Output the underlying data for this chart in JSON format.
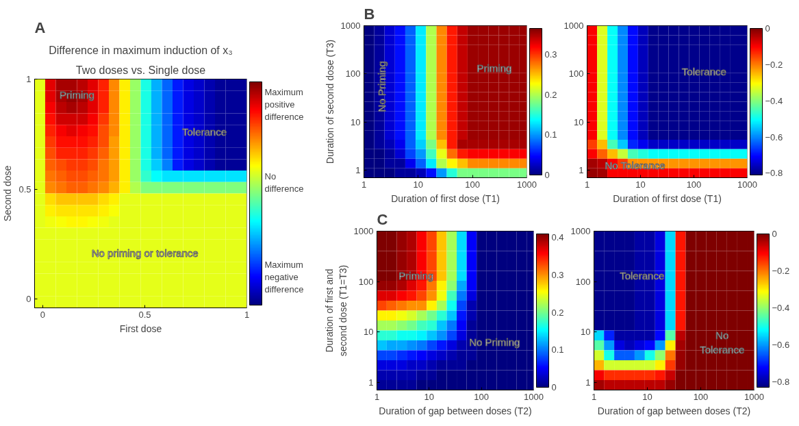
{
  "chart_data": [
    {
      "type": "heatmap",
      "title": "Difference in maximum induction of x₃",
      "subtitle": "Two doses vs. Single dose",
      "xlabel": "First dose",
      "ylabel": "Second dose",
      "annotations": [
        "A",
        "Priming",
        "Tolerance",
        "No priming or tolerance"
      ],
      "xlim": [
        -0.04,
        1
      ],
      "ylim": [
        -0.04,
        1
      ],
      "xticks": [
        0,
        0.5,
        1
      ],
      "yticks": [
        0,
        0.5,
        1
      ],
      "x": [
        -0.014,
        0.038,
        0.09,
        0.142,
        0.194,
        0.246,
        0.298,
        0.35,
        0.402,
        0.454,
        0.506,
        0.558,
        0.61,
        0.662,
        0.714,
        0.766,
        0.818,
        0.87,
        0.922,
        0.974
      ],
      "y": [
        0.974,
        0.922,
        0.87,
        0.818,
        0.766,
        0.714,
        0.662,
        0.61,
        0.558,
        0.506,
        0.454,
        0.402,
        0.35,
        0.298,
        0.246,
        0.194,
        0.142,
        0.09,
        0.038,
        -0.014
      ],
      "clim": [
        -1,
        1
      ],
      "cticks": [
        {
          "value": 0.8,
          "label": "Maximum\npositive\ndifference"
        },
        {
          "value": 0.1,
          "label": "No\ndifference"
        },
        {
          "value": -0.75,
          "label": "Maximum\nnegative\ndifference"
        }
      ],
      "cells": [
        [
          0.2,
          0.8,
          0.92,
          0.92,
          0.88,
          0.8,
          0.68,
          0.48,
          0.28,
          0.05,
          -0.2,
          -0.4,
          -0.55,
          -0.7,
          -0.8,
          -0.85,
          -0.9,
          -0.95,
          -0.95,
          -0.95
        ],
        [
          0.2,
          0.8,
          0.92,
          0.96,
          0.92,
          0.8,
          0.68,
          0.48,
          0.28,
          0.05,
          -0.2,
          -0.4,
          -0.55,
          -0.7,
          -0.8,
          -0.85,
          -0.9,
          -0.95,
          -0.95,
          -0.95
        ],
        [
          0.2,
          0.76,
          0.88,
          0.92,
          0.88,
          0.8,
          0.68,
          0.48,
          0.28,
          0.05,
          -0.2,
          -0.4,
          -0.55,
          -0.7,
          -0.8,
          -0.85,
          -0.9,
          -0.95,
          -0.95,
          -0.95
        ],
        [
          0.2,
          0.72,
          0.84,
          0.84,
          0.84,
          0.76,
          0.64,
          0.48,
          0.28,
          0.05,
          -0.2,
          -0.4,
          -0.55,
          -0.7,
          -0.8,
          -0.85,
          -0.9,
          -0.95,
          -0.95,
          -0.95
        ],
        [
          0.2,
          0.68,
          0.76,
          0.8,
          0.76,
          0.72,
          0.6,
          0.48,
          0.28,
          0.05,
          -0.2,
          -0.4,
          -0.55,
          -0.7,
          -0.8,
          -0.85,
          -0.9,
          -0.95,
          -0.95,
          -0.95
        ],
        [
          0.2,
          0.64,
          0.72,
          0.72,
          0.72,
          0.68,
          0.6,
          0.44,
          0.28,
          0.05,
          -0.2,
          -0.4,
          -0.55,
          -0.7,
          -0.8,
          -0.85,
          -0.9,
          -0.95,
          -0.95,
          -0.95
        ],
        [
          0.2,
          0.6,
          0.68,
          0.68,
          0.68,
          0.64,
          0.56,
          0.44,
          0.28,
          0.05,
          -0.2,
          -0.4,
          -0.55,
          -0.7,
          -0.8,
          -0.85,
          -0.9,
          -0.95,
          -0.95,
          -0.95
        ],
        [
          0.2,
          0.56,
          0.6,
          0.64,
          0.64,
          0.6,
          0.52,
          0.44,
          0.28,
          0.05,
          -0.2,
          -0.35,
          -0.5,
          -0.7,
          -0.8,
          -0.85,
          -0.9,
          -0.95,
          -0.95,
          -0.95
        ],
        [
          0.2,
          0.52,
          0.56,
          0.6,
          0.6,
          0.56,
          0.52,
          0.44,
          0.28,
          0.05,
          -0.15,
          -0.25,
          -0.3,
          -0.3,
          -0.3,
          -0.3,
          -0.3,
          -0.3,
          -0.3,
          -0.3
        ],
        [
          0.2,
          0.48,
          0.52,
          0.56,
          0.56,
          0.52,
          0.48,
          0.4,
          0.28,
          0.1,
          0,
          0,
          0,
          0,
          0,
          0,
          0,
          0,
          0,
          0
        ],
        [
          0.2,
          0.32,
          0.36,
          0.36,
          0.36,
          0.36,
          0.32,
          0.28,
          0.2,
          0.2,
          0.2,
          0.2,
          0.2,
          0.2,
          0.2,
          0.2,
          0.2,
          0.2,
          0.2,
          0.2
        ],
        [
          0.2,
          0.28,
          0.3,
          0.3,
          0.3,
          0.3,
          0.28,
          0.24,
          0.2,
          0.2,
          0.2,
          0.2,
          0.2,
          0.2,
          0.2,
          0.2,
          0.2,
          0.2,
          0.2,
          0.2
        ],
        [
          0.2,
          0.22,
          0.24,
          0.26,
          0.26,
          0.24,
          0.22,
          0.2,
          0.2,
          0.2,
          0.2,
          0.2,
          0.2,
          0.2,
          0.2,
          0.2,
          0.2,
          0.2,
          0.2,
          0.2
        ],
        [
          0.2,
          0.2,
          0.2,
          0.2,
          0.2,
          0.2,
          0.2,
          0.2,
          0.2,
          0.2,
          0.2,
          0.2,
          0.2,
          0.2,
          0.2,
          0.2,
          0.2,
          0.2,
          0.2,
          0.2
        ],
        [
          0.2,
          0.2,
          0.2,
          0.2,
          0.2,
          0.2,
          0.2,
          0.2,
          0.2,
          0.2,
          0.2,
          0.2,
          0.2,
          0.2,
          0.2,
          0.2,
          0.2,
          0.2,
          0.2,
          0.2
        ],
        [
          0.2,
          0.2,
          0.2,
          0.2,
          0.2,
          0.2,
          0.2,
          0.2,
          0.2,
          0.2,
          0.2,
          0.2,
          0.2,
          0.2,
          0.2,
          0.2,
          0.2,
          0.2,
          0.2,
          0.2
        ],
        [
          0.2,
          0.2,
          0.2,
          0.2,
          0.2,
          0.2,
          0.2,
          0.2,
          0.2,
          0.2,
          0.2,
          0.2,
          0.2,
          0.2,
          0.2,
          0.2,
          0.2,
          0.2,
          0.2,
          0.2
        ],
        [
          0.2,
          0.2,
          0.2,
          0.2,
          0.2,
          0.2,
          0.2,
          0.2,
          0.2,
          0.2,
          0.2,
          0.2,
          0.2,
          0.2,
          0.2,
          0.2,
          0.2,
          0.2,
          0.2,
          0.2
        ],
        [
          0.2,
          0.2,
          0.2,
          0.2,
          0.2,
          0.2,
          0.2,
          0.2,
          0.2,
          0.2,
          0.2,
          0.2,
          0.2,
          0.2,
          0.2,
          0.2,
          0.2,
          0.2,
          0.2,
          0.2
        ],
        [
          0.2,
          0.2,
          0.2,
          0.2,
          0.2,
          0.2,
          0.2,
          0.2,
          0.2,
          0.2,
          0.2,
          0.2,
          0.2,
          0.2,
          0.2,
          0.2,
          0.2,
          0.2,
          0.2,
          0.2
        ]
      ]
    },
    {
      "type": "heatmap",
      "xlabel": "Duration of first dose (T1)",
      "ylabel": "Duration of second dose (T3)",
      "annotations": [
        "B",
        "No Priming",
        "Priming"
      ],
      "log": "xy",
      "xlim": [
        1,
        1000
      ],
      "ylim": [
        0.7,
        1000
      ],
      "xticks": [
        1,
        10,
        100,
        1000
      ],
      "yticks": [
        1,
        10,
        100,
        1000
      ],
      "x": [
        1.24,
        1.92,
        2.99,
        4.64,
        7.2,
        11.2,
        17.4,
        27,
        41.9,
        65,
        101,
        157,
        244,
        379,
        589,
        914
      ],
      "y": [
        797,
        506,
        322,
        204,
        130,
        82.3,
        52.3,
        33.2,
        21.1,
        13.4,
        8.5,
        5.4,
        3.43,
        2.18,
        1.38,
        0.878
      ],
      "clim": [
        0,
        0.365
      ],
      "cticks": [
        0,
        0.1,
        0.2,
        0.3
      ],
      "cells": [
        [
          0,
          0.01,
          0.03,
          0.05,
          0.08,
          0.13,
          0.2,
          0.27,
          0.31,
          0.34,
          0.355,
          0.355,
          0.355,
          0.355,
          0.355,
          0.355
        ],
        [
          0,
          0.01,
          0.03,
          0.05,
          0.08,
          0.13,
          0.2,
          0.27,
          0.31,
          0.34,
          0.355,
          0.355,
          0.355,
          0.355,
          0.355,
          0.355
        ],
        [
          0,
          0.01,
          0.03,
          0.05,
          0.08,
          0.13,
          0.2,
          0.27,
          0.31,
          0.34,
          0.355,
          0.355,
          0.355,
          0.355,
          0.355,
          0.355
        ],
        [
          0,
          0.01,
          0.03,
          0.05,
          0.08,
          0.13,
          0.2,
          0.27,
          0.31,
          0.34,
          0.355,
          0.355,
          0.355,
          0.355,
          0.355,
          0.355
        ],
        [
          0,
          0.01,
          0.03,
          0.05,
          0.08,
          0.13,
          0.2,
          0.27,
          0.31,
          0.34,
          0.355,
          0.355,
          0.355,
          0.355,
          0.355,
          0.355
        ],
        [
          0,
          0.01,
          0.03,
          0.05,
          0.08,
          0.13,
          0.2,
          0.27,
          0.31,
          0.34,
          0.355,
          0.355,
          0.355,
          0.355,
          0.355,
          0.355
        ],
        [
          0,
          0.01,
          0.03,
          0.05,
          0.08,
          0.13,
          0.2,
          0.27,
          0.31,
          0.34,
          0.355,
          0.355,
          0.355,
          0.355,
          0.355,
          0.355
        ],
        [
          0,
          0.01,
          0.03,
          0.05,
          0.08,
          0.13,
          0.2,
          0.27,
          0.31,
          0.34,
          0.355,
          0.355,
          0.355,
          0.355,
          0.355,
          0.355
        ],
        [
          0,
          0.01,
          0.03,
          0.05,
          0.08,
          0.13,
          0.2,
          0.27,
          0.31,
          0.34,
          0.355,
          0.355,
          0.355,
          0.355,
          0.355,
          0.355
        ],
        [
          0,
          0.01,
          0.03,
          0.05,
          0.08,
          0.13,
          0.2,
          0.27,
          0.31,
          0.34,
          0.355,
          0.355,
          0.355,
          0.355,
          0.355,
          0.355
        ],
        [
          0,
          0.01,
          0.03,
          0.05,
          0.08,
          0.13,
          0.2,
          0.27,
          0.31,
          0.34,
          0.355,
          0.355,
          0.355,
          0.355,
          0.355,
          0.355
        ],
        [
          0,
          0.01,
          0.03,
          0.05,
          0.08,
          0.13,
          0.2,
          0.27,
          0.31,
          0.34,
          0.355,
          0.355,
          0.355,
          0.355,
          0.355,
          0.355
        ],
        [
          0,
          0.01,
          0.02,
          0.04,
          0.08,
          0.12,
          0.18,
          0.25,
          0.31,
          0.35,
          0.35,
          0.35,
          0.35,
          0.35,
          0.35,
          0.35
        ],
        [
          0,
          0,
          0.01,
          0.03,
          0.07,
          0.1,
          0.16,
          0.22,
          0.28,
          0.31,
          0.32,
          0.32,
          0.32,
          0.32,
          0.32,
          0.32
        ],
        [
          0,
          0,
          0.01,
          0.01,
          0.04,
          0.08,
          0.13,
          0.2,
          0.23,
          0.25,
          0.27,
          0.27,
          0.27,
          0.27,
          0.27,
          0.27
        ],
        [
          0,
          0,
          0,
          0.01,
          0.01,
          0.02,
          0.05,
          0.1,
          0.15,
          0.18,
          0.18,
          0.18,
          0.18,
          0.18,
          0.18,
          0.18
        ]
      ]
    },
    {
      "type": "heatmap",
      "xlabel": "Duration of first dose (T1)",
      "annotations": [
        "Tolerance",
        "No Tolerance"
      ],
      "log": "xy",
      "xlim": [
        1,
        1000
      ],
      "ylim": [
        0.7,
        1000
      ],
      "xticks": [
        1,
        10,
        100,
        1000
      ],
      "yticks": [
        1,
        10,
        100,
        1000
      ],
      "x": [
        1.24,
        1.92,
        2.99,
        4.64,
        7.2,
        11.2,
        17.4,
        27,
        41.9,
        65,
        101,
        157,
        244,
        379,
        589,
        914
      ],
      "y": [
        797,
        506,
        322,
        204,
        130,
        82.3,
        52.3,
        33.2,
        21.1,
        13.4,
        8.5,
        5.4,
        3.43,
        2.18,
        1.38,
        0.878
      ],
      "clim": [
        -0.81,
        0
      ],
      "cticks": [
        0,
        {
          "value": -0.2,
          "label": "−0.2"
        },
        {
          "value": -0.4,
          "label": "−0.4"
        },
        {
          "value": -0.6,
          "label": "−0.6"
        },
        {
          "value": -0.8,
          "label": "−0.8"
        }
      ],
      "cells": [
        [
          -0.1,
          -0.33,
          -0.5,
          -0.6,
          -0.7,
          -0.76,
          -0.8,
          -0.8,
          -0.8,
          -0.8,
          -0.8,
          -0.8,
          -0.8,
          -0.8,
          -0.8,
          -0.8
        ],
        [
          -0.1,
          -0.33,
          -0.5,
          -0.6,
          -0.7,
          -0.76,
          -0.8,
          -0.8,
          -0.8,
          -0.8,
          -0.8,
          -0.8,
          -0.8,
          -0.8,
          -0.8,
          -0.8
        ],
        [
          -0.1,
          -0.33,
          -0.5,
          -0.6,
          -0.7,
          -0.76,
          -0.8,
          -0.8,
          -0.8,
          -0.8,
          -0.8,
          -0.8,
          -0.8,
          -0.8,
          -0.8,
          -0.8
        ],
        [
          -0.1,
          -0.33,
          -0.5,
          -0.6,
          -0.7,
          -0.76,
          -0.8,
          -0.8,
          -0.8,
          -0.8,
          -0.8,
          -0.8,
          -0.8,
          -0.8,
          -0.8,
          -0.8
        ],
        [
          -0.1,
          -0.33,
          -0.5,
          -0.6,
          -0.7,
          -0.76,
          -0.8,
          -0.8,
          -0.8,
          -0.8,
          -0.8,
          -0.8,
          -0.8,
          -0.8,
          -0.8,
          -0.8
        ],
        [
          -0.1,
          -0.33,
          -0.5,
          -0.6,
          -0.7,
          -0.76,
          -0.8,
          -0.8,
          -0.8,
          -0.8,
          -0.8,
          -0.8,
          -0.8,
          -0.8,
          -0.8,
          -0.8
        ],
        [
          -0.1,
          -0.33,
          -0.5,
          -0.6,
          -0.7,
          -0.76,
          -0.8,
          -0.8,
          -0.8,
          -0.8,
          -0.8,
          -0.8,
          -0.8,
          -0.8,
          -0.8,
          -0.8
        ],
        [
          -0.1,
          -0.33,
          -0.5,
          -0.6,
          -0.7,
          -0.76,
          -0.8,
          -0.8,
          -0.8,
          -0.8,
          -0.8,
          -0.8,
          -0.8,
          -0.8,
          -0.8,
          -0.8
        ],
        [
          -0.1,
          -0.33,
          -0.5,
          -0.6,
          -0.7,
          -0.76,
          -0.8,
          -0.8,
          -0.8,
          -0.8,
          -0.8,
          -0.8,
          -0.8,
          -0.8,
          -0.8,
          -0.8
        ],
        [
          -0.1,
          -0.33,
          -0.5,
          -0.6,
          -0.7,
          -0.76,
          -0.8,
          -0.8,
          -0.8,
          -0.8,
          -0.8,
          -0.8,
          -0.8,
          -0.8,
          -0.8,
          -0.8
        ],
        [
          -0.1,
          -0.33,
          -0.5,
          -0.6,
          -0.7,
          -0.76,
          -0.8,
          -0.8,
          -0.8,
          -0.8,
          -0.8,
          -0.8,
          -0.8,
          -0.8,
          -0.8,
          -0.8
        ],
        [
          -0.1,
          -0.33,
          -0.5,
          -0.6,
          -0.7,
          -0.76,
          -0.8,
          -0.8,
          -0.8,
          -0.8,
          -0.8,
          -0.8,
          -0.8,
          -0.8,
          -0.8,
          -0.8
        ],
        [
          -0.15,
          -0.25,
          -0.45,
          -0.55,
          -0.68,
          -0.72,
          -0.75,
          -0.75,
          -0.75,
          -0.75,
          -0.75,
          -0.75,
          -0.75,
          -0.75,
          -0.75,
          -0.75
        ],
        [
          -0.1,
          -0.18,
          -0.25,
          -0.35,
          -0.45,
          -0.48,
          -0.5,
          -0.5,
          -0.5,
          -0.5,
          -0.5,
          -0.5,
          -0.5,
          -0.5,
          -0.5,
          -0.5
        ],
        [
          -0.03,
          -0.05,
          -0.1,
          -0.15,
          -0.22,
          -0.22,
          -0.22,
          -0.22,
          -0.22,
          -0.22,
          -0.22,
          -0.22,
          -0.22,
          -0.22,
          -0.22,
          -0.22
        ],
        [
          -0.02,
          -0.03,
          -0.1,
          -0.1,
          -0.1,
          -0.1,
          -0.1,
          -0.1,
          -0.1,
          -0.1,
          -0.1,
          -0.1,
          -0.1,
          -0.1,
          -0.1,
          -0.1
        ]
      ]
    },
    {
      "type": "heatmap",
      "xlabel": "Duration of gap between doses (T2)",
      "ylabel": "Duration of first and\nsecond dose (T1=T3)",
      "annotations": [
        "C",
        "Priming",
        "No Priming"
      ],
      "log": "xy",
      "xlim": [
        1,
        1000
      ],
      "ylim": [
        0.7,
        1000
      ],
      "xticks": [
        1,
        10,
        100,
        1000
      ],
      "yticks": [
        1,
        10,
        100,
        1000
      ],
      "x": [
        1.24,
        1.92,
        2.99,
        4.64,
        7.2,
        11.2,
        17.4,
        27,
        41.9,
        65,
        101,
        157,
        244,
        379,
        589,
        914
      ],
      "y": [
        797,
        506,
        322,
        204,
        130,
        82.3,
        52.3,
        33.2,
        21.1,
        13.4,
        8.5,
        5.4,
        3.43,
        2.18,
        1.38,
        0.878
      ],
      "clim": [
        0,
        0.41
      ],
      "cticks": [
        0,
        0.1,
        0.2,
        0.3,
        0.4
      ],
      "cells": [
        [
          0.41,
          0.41,
          0.4,
          0.39,
          0.36,
          0.33,
          0.28,
          0.22,
          0.14,
          0.05,
          0,
          0,
          0,
          0,
          0,
          0
        ],
        [
          0.41,
          0.41,
          0.4,
          0.39,
          0.36,
          0.33,
          0.28,
          0.22,
          0.14,
          0.05,
          0,
          0,
          0,
          0,
          0,
          0
        ],
        [
          0.41,
          0.41,
          0.4,
          0.39,
          0.36,
          0.33,
          0.28,
          0.22,
          0.14,
          0.05,
          0,
          0,
          0,
          0,
          0,
          0
        ],
        [
          0.41,
          0.41,
          0.4,
          0.39,
          0.36,
          0.33,
          0.28,
          0.22,
          0.14,
          0.05,
          0,
          0,
          0,
          0,
          0,
          0
        ],
        [
          0.41,
          0.41,
          0.4,
          0.39,
          0.36,
          0.33,
          0.28,
          0.22,
          0.14,
          0.05,
          0,
          0,
          0,
          0,
          0,
          0
        ],
        [
          0.4,
          0.4,
          0.39,
          0.37,
          0.35,
          0.31,
          0.26,
          0.21,
          0.12,
          0.05,
          0,
          0,
          0,
          0,
          0,
          0
        ],
        [
          0.37,
          0.37,
          0.36,
          0.35,
          0.33,
          0.3,
          0.25,
          0.18,
          0.1,
          0.04,
          0,
          0,
          0,
          0,
          0,
          0
        ],
        [
          0.33,
          0.32,
          0.31,
          0.3,
          0.3,
          0.26,
          0.22,
          0.16,
          0.08,
          0.02,
          0,
          0,
          0,
          0,
          0,
          0
        ],
        [
          0.26,
          0.26,
          0.25,
          0.24,
          0.22,
          0.2,
          0.17,
          0.13,
          0.06,
          0.02,
          0,
          0,
          0,
          0,
          0,
          0
        ],
        [
          0.22,
          0.22,
          0.21,
          0.2,
          0.18,
          0.17,
          0.13,
          0.1,
          0.05,
          0.01,
          0,
          0,
          0,
          0,
          0,
          0
        ],
        [
          0.17,
          0.17,
          0.16,
          0.16,
          0.15,
          0.13,
          0.11,
          0.08,
          0.04,
          0.01,
          0,
          0,
          0,
          0,
          0,
          0
        ],
        [
          0.13,
          0.12,
          0.12,
          0.11,
          0.1,
          0.08,
          0.06,
          0.04,
          0.02,
          0.01,
          0,
          0,
          0,
          0,
          0,
          0
        ],
        [
          0.08,
          0.08,
          0.07,
          0.06,
          0.05,
          0.04,
          0.03,
          0.02,
          0.01,
          0.01,
          0,
          0,
          0,
          0,
          0,
          0
        ],
        [
          0.04,
          0.04,
          0.04,
          0.03,
          0.03,
          0.02,
          0.01,
          0.01,
          0.01,
          0,
          0,
          0,
          0,
          0,
          0,
          0
        ],
        [
          0.02,
          0.02,
          0.02,
          0.02,
          0.01,
          0.01,
          0,
          0,
          0,
          0,
          0,
          0,
          0,
          0,
          0,
          0
        ],
        [
          0.01,
          0.01,
          0.01,
          0.01,
          0,
          0,
          0,
          0,
          0,
          0,
          0,
          0,
          0,
          0,
          0,
          0
        ]
      ]
    },
    {
      "type": "heatmap",
      "xlabel": "Duration of gap between doses (T2)",
      "annotations": [
        "Tolerance",
        "No\nTolerance"
      ],
      "log": "xy",
      "xlim": [
        1,
        1000
      ],
      "ylim": [
        0.7,
        1000
      ],
      "xticks": [
        1,
        10,
        100,
        1000
      ],
      "yticks": [
        1,
        10,
        100,
        1000
      ],
      "x": [
        1.24,
        1.92,
        2.99,
        4.64,
        7.2,
        11.2,
        17.4,
        27,
        41.9,
        65,
        101,
        157,
        244,
        379,
        589,
        914
      ],
      "y": [
        797,
        506,
        322,
        204,
        130,
        82.3,
        52.3,
        33.2,
        21.1,
        13.4,
        8.5,
        5.4,
        3.43,
        2.18,
        1.38,
        0.878
      ],
      "clim": [
        -0.83,
        0
      ],
      "cticks": [
        0,
        {
          "value": -0.2,
          "label": "−0.2"
        },
        {
          "value": -0.4,
          "label": "−0.4"
        },
        {
          "value": -0.6,
          "label": "−0.6"
        },
        {
          "value": -0.8,
          "label": "−0.8"
        }
      ],
      "cells": [
        [
          -0.82,
          -0.82,
          -0.82,
          -0.82,
          -0.8,
          -0.8,
          -0.75,
          -0.55,
          -0.12,
          0,
          0,
          0,
          0,
          0,
          0,
          0
        ],
        [
          -0.82,
          -0.82,
          -0.82,
          -0.82,
          -0.8,
          -0.8,
          -0.75,
          -0.55,
          -0.12,
          0,
          0,
          0,
          0,
          0,
          0,
          0
        ],
        [
          -0.82,
          -0.82,
          -0.82,
          -0.82,
          -0.8,
          -0.8,
          -0.75,
          -0.55,
          -0.12,
          0,
          0,
          0,
          0,
          0,
          0,
          0
        ],
        [
          -0.82,
          -0.82,
          -0.82,
          -0.82,
          -0.8,
          -0.8,
          -0.75,
          -0.55,
          -0.12,
          0,
          0,
          0,
          0,
          0,
          0,
          0
        ],
        [
          -0.82,
          -0.82,
          -0.82,
          -0.82,
          -0.8,
          -0.8,
          -0.75,
          -0.55,
          -0.12,
          0,
          0,
          0,
          0,
          0,
          0,
          0
        ],
        [
          -0.82,
          -0.82,
          -0.82,
          -0.82,
          -0.8,
          -0.8,
          -0.75,
          -0.55,
          -0.12,
          0,
          0,
          0,
          0,
          0,
          0,
          0
        ],
        [
          -0.82,
          -0.82,
          -0.82,
          -0.82,
          -0.8,
          -0.8,
          -0.75,
          -0.55,
          -0.12,
          0,
          0,
          0,
          0,
          0,
          0,
          0
        ],
        [
          -0.82,
          -0.82,
          -0.82,
          -0.82,
          -0.8,
          -0.8,
          -0.75,
          -0.55,
          -0.12,
          0,
          0,
          0,
          0,
          0,
          0,
          0
        ],
        [
          -0.82,
          -0.82,
          -0.82,
          -0.82,
          -0.8,
          -0.8,
          -0.75,
          -0.55,
          -0.12,
          0,
          0,
          0,
          0,
          0,
          0,
          0
        ],
        [
          -0.82,
          -0.82,
          -0.82,
          -0.82,
          -0.8,
          -0.8,
          -0.75,
          -0.55,
          -0.12,
          0,
          0,
          0,
          0,
          0,
          0,
          0
        ],
        [
          -0.55,
          -0.7,
          -0.8,
          -0.8,
          -0.8,
          -0.8,
          -0.72,
          -0.45,
          -0.05,
          0,
          0,
          0,
          0,
          0,
          0,
          0
        ],
        [
          -0.45,
          -0.6,
          -0.75,
          -0.78,
          -0.75,
          -0.72,
          -0.6,
          -0.3,
          -0.03,
          0,
          0,
          0,
          0,
          0,
          0,
          0
        ],
        [
          -0.35,
          -0.5,
          -0.65,
          -0.65,
          -0.6,
          -0.5,
          -0.4,
          -0.2,
          -0.02,
          0,
          0,
          0,
          0,
          0,
          0,
          0
        ],
        [
          -0.25,
          -0.35,
          -0.35,
          -0.35,
          -0.35,
          -0.35,
          -0.3,
          -0.15,
          -0.02,
          0,
          0,
          0,
          0,
          0,
          0,
          0
        ],
        [
          -0.1,
          -0.14,
          -0.14,
          -0.14,
          -0.14,
          -0.14,
          -0.12,
          -0.06,
          0,
          0,
          0,
          0,
          0,
          0,
          0,
          0
        ],
        [
          -0.03,
          -0.05,
          -0.05,
          -0.05,
          -0.05,
          -0.05,
          -0.05,
          -0.02,
          0,
          0,
          0,
          0,
          0,
          0,
          0,
          0
        ]
      ]
    }
  ]
}
